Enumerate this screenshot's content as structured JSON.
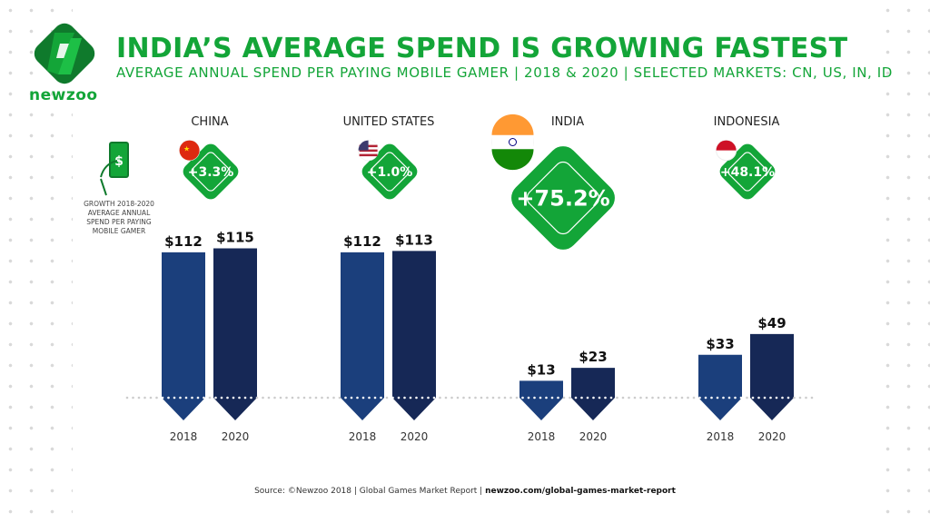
{
  "brand": {
    "name": "newzoo",
    "color": "#13a538"
  },
  "header": {
    "title": "INDIA’S AVERAGE SPEND IS GROWING FASTEST",
    "subtitle": "AVERAGE ANNUAL SPEND PER PAYING MOBILE GAMER | 2018 & 2020 | SELECTED MARKETS: CN, US, IN, ID"
  },
  "legend": {
    "text": "GROWTH 2018-2020 AVERAGE ANNUAL SPEND PER PAYING MOBILE GAMER",
    "icon": "phone-dollar-icon"
  },
  "chart_data": {
    "type": "bar",
    "title": "INDIA’S AVERAGE SPEND IS GROWING FASTEST",
    "unit": "USD",
    "categories": [
      "CHINA",
      "UNITED STATES",
      "INDIA",
      "INDONESIA"
    ],
    "x": [
      "2018",
      "2020"
    ],
    "series": [
      {
        "name": "2018",
        "color": "#1b3f7c",
        "values": [
          112,
          112,
          13,
          33
        ]
      },
      {
        "name": "2020",
        "color": "#162856",
        "values": [
          115,
          113,
          23,
          49
        ]
      }
    ],
    "labels": [
      [
        "$112",
        "$115"
      ],
      [
        "$112",
        "$113"
      ],
      [
        "$13",
        "$23"
      ],
      [
        "$33",
        "$49"
      ]
    ],
    "growth": [
      "+3.3%",
      "+1.0%",
      "+75.2%",
      "+48.1%"
    ],
    "flags": [
      "china-flag-icon",
      "us-flag-icon",
      "india-flag-icon",
      "indonesia-flag-icon"
    ],
    "ylim": [
      0,
      120
    ]
  },
  "footer": {
    "source": "Source: ©Newzoo 2018 | Global Games Market Report | ",
    "link": "newzoo.com/global-games-market-report"
  }
}
